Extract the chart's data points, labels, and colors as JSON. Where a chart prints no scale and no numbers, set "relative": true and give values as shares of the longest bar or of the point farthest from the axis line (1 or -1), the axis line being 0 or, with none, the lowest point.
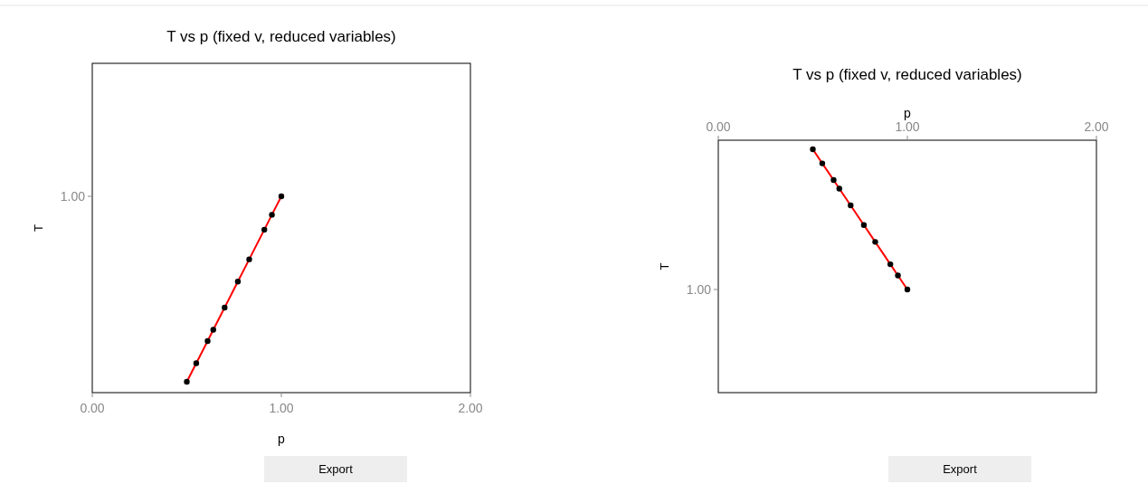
{
  "chart_data": [
    {
      "type": "line",
      "title": "T vs p (fixed v, reduced variables)",
      "xlabel": "p",
      "ylabel": "T",
      "relative": true,
      "x": [
        0.5,
        0.55,
        0.61,
        0.64,
        0.7,
        0.77,
        0.83,
        0.91,
        0.95,
        1.0
      ],
      "series": [
        {
          "color": "#ff0000",
          "values": [
            0.055,
            0.15,
            0.263,
            0.32,
            0.433,
            0.566,
            0.679,
            0.83,
            0.906,
            1.0
          ]
        }
      ],
      "xlim": [
        0,
        2
      ],
      "xticks": [
        {
          "value": 0,
          "label": "0.00"
        },
        {
          "value": 1,
          "label": "1.00"
        },
        {
          "value": 2,
          "label": "2.00"
        }
      ],
      "marker": "circle",
      "annotations": [
        "1.00",
        "Export"
      ]
    },
    {
      "type": "line",
      "title": "T vs p (fixed v, reduced variables)",
      "xlabel": "p",
      "ylabel": "T",
      "relative": true,
      "x": [
        0.5,
        0.55,
        0.61,
        0.64,
        0.7,
        0.77,
        0.83,
        0.91,
        0.95,
        1.0
      ],
      "series": [
        {
          "color": "#ff0000",
          "values": [
            -0.061,
            -0.155,
            -0.267,
            -0.324,
            -0.436,
            -0.568,
            -0.681,
            -0.831,
            -0.906,
            -1.0
          ]
        }
      ],
      "xlim": [
        0,
        2
      ],
      "xticks": [
        {
          "value": 0,
          "label": "0.00"
        },
        {
          "value": 1,
          "label": "1.00"
        },
        {
          "value": 2,
          "label": "2.00"
        }
      ],
      "marker": "circle",
      "annotations": [
        "1.00",
        "Export"
      ]
    }
  ]
}
